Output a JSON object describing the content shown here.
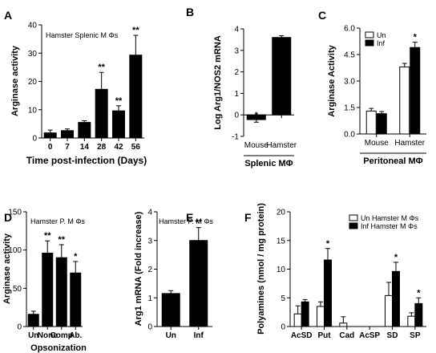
{
  "chart_data": [
    {
      "panel": "A",
      "type": "bar",
      "title": "",
      "annotation": "Hamster Splenic M Φs",
      "xlabel": "Time post-infection (Days)",
      "ylabel": "Arginase activity",
      "categories": [
        "0",
        "7",
        "14",
        "28",
        "42",
        "56"
      ],
      "series": [
        {
          "values": [
            1.8,
            2.6,
            5.5,
            17.2,
            9.6,
            29.3
          ],
          "errors": [
            1.0,
            0.6,
            0.6,
            6.0,
            1.8,
            7.0
          ],
          "color": "#000000"
        }
      ],
      "significance": [
        "",
        "",
        "",
        "**",
        "**",
        "**"
      ],
      "ylim": [
        0,
        40
      ],
      "yticks": [
        "0",
        "10",
        "20",
        "30",
        "40"
      ]
    },
    {
      "panel": "B",
      "type": "bar",
      "title": "",
      "xlabel": "Splenic MΦ",
      "ylabel": "Log Arg1/NOS2 mRNA",
      "categories": [
        "Mouse",
        "Hamster"
      ],
      "series": [
        {
          "values": [
            -0.22,
            3.6
          ],
          "errors": [
            0.12,
            0.08
          ],
          "color": "#000000"
        }
      ],
      "significance": [
        "*",
        ""
      ],
      "ylim": [
        -1,
        4
      ],
      "yticks": [
        "-1",
        "0",
        "1",
        "2",
        "3",
        "4"
      ]
    },
    {
      "panel": "C",
      "type": "bar",
      "title": "",
      "xlabel": "Peritoneal MΦ",
      "ylabel": "Arginase Activity",
      "categories": [
        "Mouse",
        "Hamster"
      ],
      "legend": [
        "Un",
        "Inf"
      ],
      "legend_position": "top-left",
      "series": [
        {
          "name": "Un",
          "values": [
            1.3,
            3.8
          ],
          "errors": [
            0.15,
            0.2
          ],
          "color": "#ffffff"
        },
        {
          "name": "Inf",
          "values": [
            1.15,
            4.9
          ],
          "errors": [
            0.12,
            0.3
          ],
          "color": "#000000"
        }
      ],
      "significance": [
        [
          "",
          ""
        ],
        [
          "",
          "*"
        ]
      ],
      "ylim": [
        0,
        6
      ],
      "yticks": [
        "0.0",
        "1.5",
        "3.0",
        "4.5",
        "6.0"
      ]
    },
    {
      "panel": "D",
      "type": "bar",
      "title": "",
      "annotation": "Hamster P. M Φs",
      "xlabel": "Opsonization",
      "ylabel": "Arginase activity",
      "categories": [
        "Un",
        "None",
        "Comp",
        "Ab."
      ],
      "series": [
        {
          "values": [
            16,
            96,
            90,
            70
          ],
          "errors": [
            4,
            16,
            17,
            15
          ],
          "color": "#000000"
        }
      ],
      "significance": [
        "",
        "**",
        "**",
        "*"
      ],
      "ylim": [
        0,
        150
      ],
      "yticks": [
        "0",
        "50",
        "100",
        "150"
      ]
    },
    {
      "panel": "E",
      "type": "bar",
      "title": "",
      "annotation": "Hamster P. M Φs",
      "xlabel": "",
      "ylabel": "Arg1 mRNA (Fold increase)",
      "categories": [
        "Un",
        "Inf"
      ],
      "series": [
        {
          "values": [
            1.15,
            3.0
          ],
          "errors": [
            0.1,
            0.45
          ],
          "color": "#000000"
        }
      ],
      "significance": [
        "",
        "**"
      ],
      "ylim": [
        0,
        4
      ],
      "yticks": [
        "0",
        "1",
        "2",
        "3",
        "4"
      ]
    },
    {
      "panel": "F",
      "type": "bar",
      "title": "",
      "xlabel": "",
      "ylabel": "Polyamines (nmol / mg protein)",
      "categories": [
        "AcSD",
        "Put",
        "Cad",
        "AcSP",
        "SD",
        "SP"
      ],
      "legend": [
        "Un Hamster M Φs",
        "Inf Hamster M Φs"
      ],
      "legend_position": "top-right",
      "series": [
        {
          "name": "Un Hamster M Φs",
          "values": [
            2.2,
            3.5,
            0.6,
            0,
            5.4,
            1.8
          ],
          "errors": [
            1.4,
            0.8,
            1.1,
            0,
            2.3,
            0.6
          ],
          "color": "#ffffff"
        },
        {
          "name": "Inf Hamster M Φs",
          "values": [
            4.3,
            11.6,
            0,
            0,
            9.6,
            4.0
          ],
          "errors": [
            0.4,
            2.0,
            0,
            0,
            1.6,
            1.0
          ],
          "color": "#000000"
        }
      ],
      "significance": [
        [
          "",
          ""
        ],
        [
          "",
          "*"
        ],
        [
          "",
          ""
        ],
        [
          "",
          ""
        ],
        [
          "",
          "*"
        ],
        [
          "",
          "*"
        ]
      ],
      "ylim": [
        0,
        20
      ],
      "yticks": [
        "0",
        "5",
        "10",
        "15",
        "20"
      ]
    }
  ]
}
